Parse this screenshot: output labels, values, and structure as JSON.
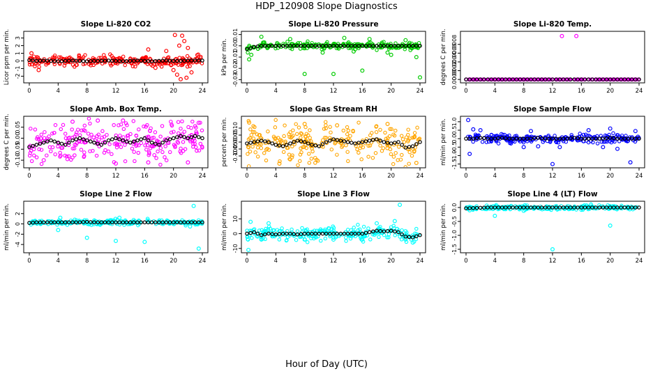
{
  "figure": {
    "title": "HDP_120908  Slope Diagnostics",
    "xlabel": "Hour of Day (UTC)"
  },
  "chart_data": [
    {
      "type": "scatter",
      "title": "Slope Li-820 CO2",
      "ylabel": "Licor ppm per min.",
      "color": "#ff0000",
      "xlim": [
        0,
        24
      ],
      "ylim": [
        -2.6,
        3.6
      ],
      "xticks": [
        0,
        4,
        8,
        12,
        16,
        20,
        24
      ],
      "yticks": [
        -2,
        -1,
        0,
        1,
        2,
        3
      ],
      "ytick_labels": [
        "-2",
        "-1",
        "0",
        "1",
        "2",
        "3"
      ],
      "hourly_mean": [
        0.1,
        0.0,
        0.05,
        0.0,
        -0.05,
        0.0,
        0.05,
        0.0,
        -0.05,
        0.0,
        0.0,
        0.05,
        0.0,
        -0.05,
        0.0,
        0.05,
        0.0,
        -0.05,
        0.0,
        0.05,
        0.0,
        0.0,
        0.05,
        0.05,
        0.05
      ],
      "scatter_spread": 0.35,
      "outliers": [
        [
          20.2,
          3.4
        ],
        [
          21.2,
          3.3
        ],
        [
          20.5,
          -1.8
        ],
        [
          21.8,
          -2.2
        ],
        [
          20.8,
          2.0
        ],
        [
          22.0,
          1.7
        ],
        [
          1.3,
          -1.2
        ],
        [
          19.0,
          1.3
        ],
        [
          16.5,
          1.5
        ],
        [
          0.3,
          1.0
        ],
        [
          21.0,
          -2.4
        ],
        [
          22.5,
          -1.5
        ],
        [
          17.5,
          -0.9
        ],
        [
          21.5,
          2.6
        ],
        [
          20.0,
          -1.2
        ]
      ]
    },
    {
      "type": "scatter",
      "title": "Slope Li-820 Pressure",
      "ylabel": "kPa per min.",
      "color": "#00cc00",
      "xlim": [
        0,
        24
      ],
      "ylim": [
        -0.031,
        0.011
      ],
      "xticks": [
        0,
        4,
        8,
        12,
        16,
        20,
        24
      ],
      "yticks": [
        -0.03,
        -0.02,
        -0.01,
        0.0,
        0.01
      ],
      "ytick_labels": [
        "-0.03",
        "-0.02",
        "-0.01",
        "0.00",
        "0.01"
      ],
      "hourly_mean": [
        -0.003,
        -0.001,
        0.0,
        0.0,
        0.0,
        0.0,
        0.0,
        0.0,
        0.0,
        0.0,
        0.0,
        0.0,
        0.0,
        0.0,
        0.0,
        0.0,
        0.0,
        0.0,
        0.0,
        0.0,
        0.0,
        0.0,
        0.0,
        0.0,
        0.0
      ],
      "scatter_spread": 0.0015,
      "outliers": [
        [
          8.0,
          -0.025
        ],
        [
          12.0,
          -0.025
        ],
        [
          16.0,
          -0.022
        ],
        [
          24.0,
          -0.028
        ],
        [
          0.3,
          -0.012
        ],
        [
          0.6,
          -0.008
        ],
        [
          20.0,
          -0.008
        ],
        [
          6.0,
          0.006
        ],
        [
          13.5,
          0.007
        ],
        [
          17.0,
          0.006
        ],
        [
          19.5,
          -0.006
        ],
        [
          23.5,
          -0.01
        ],
        [
          2.0,
          0.008
        ],
        [
          10.5,
          -0.006
        ],
        [
          14.8,
          -0.005
        ],
        [
          22.0,
          0.005
        ]
      ]
    },
    {
      "type": "scatter",
      "title": "Slope Li-820 Temp.",
      "ylabel": "degrees C per min.",
      "color": "#ff00ff",
      "xlim": [
        0,
        24
      ],
      "ylim": [
        -3e-05,
        0.00105
      ],
      "xticks": [
        0,
        4,
        8,
        12,
        16,
        20,
        24
      ],
      "yticks": [
        0.0,
        0.0002,
        0.0004,
        0.0006,
        0.0008
      ],
      "ytick_labels": [
        "0.0000",
        "0.0002",
        "0.0004",
        "0.0006",
        "0.0008"
      ],
      "hourly_mean": [
        0,
        0,
        0,
        0,
        0,
        0,
        0,
        0,
        0,
        0,
        0,
        0,
        0,
        0,
        0,
        0,
        0,
        0,
        0,
        0,
        0,
        0,
        0,
        0,
        0
      ],
      "scatter_spread": 0.0,
      "outliers": [
        [
          13.3,
          0.00099
        ],
        [
          15.3,
          0.00099
        ]
      ]
    },
    {
      "type": "scatter",
      "title": "Slope Amb. Box Temp.",
      "ylabel": "degrees C per min.",
      "color": "#ff00ff",
      "xlim": [
        0,
        24
      ],
      "ylim": [
        -0.125,
        0.09
      ],
      "xticks": [
        0,
        4,
        8,
        12,
        16,
        20,
        24
      ],
      "yticks": [
        -0.1,
        -0.05,
        0.0,
        0.05
      ],
      "ytick_labels": [
        "-0.10",
        "-0.05",
        "0.00",
        "0.05"
      ],
      "hourly_mean": [
        -0.04,
        -0.03,
        -0.02,
        -0.01,
        -0.02,
        -0.03,
        -0.01,
        0.0,
        -0.01,
        -0.02,
        -0.03,
        -0.01,
        0.0,
        -0.01,
        -0.02,
        -0.01,
        0.0,
        -0.02,
        -0.03,
        -0.01,
        0.0,
        0.01,
        0.0,
        0.01,
        0.0
      ],
      "scatter_spread": 0.045,
      "outliers": [
        [
          9.5,
          0.08
        ],
        [
          13.0,
          0.08
        ],
        [
          12.0,
          -0.115
        ],
        [
          22.0,
          -0.11
        ],
        [
          2.0,
          -0.1
        ],
        [
          6.0,
          0.075
        ],
        [
          16.5,
          -0.11
        ],
        [
          23.5,
          0.07
        ]
      ]
    },
    {
      "type": "scatter",
      "title": "Slope Gas Stream RH",
      "ylabel": "percent per min.",
      "color": "#ffa500",
      "xlim": [
        0,
        24
      ],
      "ylim": [
        -0.17,
        0.17
      ],
      "xticks": [
        0,
        4,
        8,
        12,
        16,
        20,
        24
      ],
      "yticks": [
        -0.1,
        -0.05,
        0.0,
        0.05,
        0.1
      ],
      "ytick_labels": [
        "-0.10",
        "-0.05",
        "0.00",
        "0.05",
        "0.10"
      ],
      "hourly_mean": [
        -0.01,
        0.0,
        0.01,
        0.0,
        -0.02,
        -0.03,
        -0.01,
        0.01,
        0.0,
        -0.02,
        -0.03,
        0.0,
        0.02,
        0.01,
        0.0,
        -0.01,
        0.0,
        0.01,
        0.02,
        0.0,
        -0.01,
        0.0,
        -0.04,
        -0.03,
        0.0
      ],
      "scatter_spread": 0.07,
      "outliers": [
        [
          4.5,
          -0.155
        ],
        [
          0.3,
          0.14
        ],
        [
          12.5,
          0.12
        ],
        [
          19.5,
          0.13
        ],
        [
          23.5,
          -0.15
        ],
        [
          8.0,
          0.13
        ]
      ]
    },
    {
      "type": "scatter",
      "title": "Slope Sample Flow",
      "ylabel": "ml/min per min.",
      "color": "#0000ff",
      "xlim": [
        0,
        24
      ],
      "ylim": [
        -1.6,
        1.2
      ],
      "xticks": [
        0,
        4,
        8,
        12,
        16,
        20,
        24
      ],
      "yticks": [
        -1.5,
        -1.0,
        -0.5,
        0.0,
        0.5,
        1.0
      ],
      "ytick_labels": [
        "-1.5",
        "-1.0",
        "-0.5",
        "0.0",
        "0.5",
        "1.0"
      ],
      "hourly_mean": [
        0.0,
        0.0,
        0.05,
        0.0,
        0.0,
        0.05,
        0.0,
        0.0,
        0.0,
        0.0,
        0.05,
        0.0,
        0.0,
        0.0,
        0.0,
        0.05,
        0.0,
        0.0,
        0.0,
        0.0,
        0.05,
        0.0,
        0.0,
        0.0,
        0.0
      ],
      "scatter_spread": 0.12,
      "outliers": [
        [
          0.3,
          1.1
        ],
        [
          12.0,
          -1.5
        ],
        [
          22.8,
          -1.4
        ],
        [
          0.5,
          -0.9
        ],
        [
          8.0,
          -0.5
        ],
        [
          21.0,
          -0.6
        ],
        [
          2.0,
          0.5
        ],
        [
          13.0,
          -0.5
        ],
        [
          20.0,
          0.6
        ],
        [
          1.0,
          0.55
        ],
        [
          9.0,
          0.45
        ],
        [
          17.0,
          0.5
        ],
        [
          23.5,
          0.45
        ],
        [
          10.0,
          -0.45
        ],
        [
          19.0,
          -0.5
        ]
      ]
    },
    {
      "type": "scatter",
      "title": "Slope Line 2 Flow",
      "ylabel": "ml/min per min.",
      "color": "#00ffff",
      "xlim": [
        0,
        24
      ],
      "ylim": [
        -5.2,
        4.0
      ],
      "xticks": [
        0,
        4,
        8,
        12,
        16,
        20,
        24
      ],
      "yticks": [
        -4,
        -2,
        0,
        2
      ],
      "ytick_labels": [
        "-4",
        "-2",
        "0",
        "2"
      ],
      "hourly_mean": [
        0.2,
        0.3,
        0.3,
        0.3,
        0.3,
        0.3,
        0.3,
        0.3,
        0.4,
        0.3,
        0.3,
        0.3,
        0.3,
        0.3,
        0.3,
        0.3,
        0.3,
        0.3,
        0.3,
        0.3,
        0.3,
        0.3,
        0.3,
        0.3,
        0.3
      ],
      "scatter_spread": 0.25,
      "outliers": [
        [
          22.8,
          3.5
        ],
        [
          23.5,
          -4.8
        ],
        [
          4.0,
          -1.2
        ],
        [
          8.0,
          -2.7
        ],
        [
          12.0,
          -3.3
        ],
        [
          16.0,
          -3.5
        ],
        [
          22.3,
          -0.5
        ],
        [
          4.3,
          1.2
        ],
        [
          12.5,
          1.2
        ]
      ]
    },
    {
      "type": "scatter",
      "title": "Slope Line 3 Flow",
      "ylabel": "ml/min per min.",
      "color": "#00ffff",
      "xlim": [
        0,
        24
      ],
      "ylim": [
        -11.5,
        20.5
      ],
      "xticks": [
        0,
        4,
        8,
        12,
        16,
        20,
        24
      ],
      "yticks": [
        -10,
        0,
        10
      ],
      "ytick_labels": [
        "-10",
        "0",
        "10"
      ],
      "hourly_mean": [
        0.0,
        1.0,
        -1.0,
        0.0,
        -0.5,
        0.0,
        0.0,
        -0.5,
        0.0,
        0.0,
        0.0,
        0.0,
        0.0,
        0.0,
        0.0,
        0.0,
        0.0,
        1.0,
        2.0,
        1.5,
        2.0,
        1.0,
        -2.0,
        -2.5,
        -1.0
      ],
      "scatter_spread": 2.2,
      "outliers": [
        [
          0.2,
          -11.0
        ],
        [
          21.2,
          19.5
        ],
        [
          0.5,
          8.0
        ],
        [
          3.0,
          7.0
        ],
        [
          18.0,
          7.0
        ],
        [
          20.5,
          8.5
        ],
        [
          22.0,
          -4.0
        ],
        [
          23.0,
          -6.0
        ],
        [
          2.0,
          -4.0
        ],
        [
          12.0,
          -4.0
        ],
        [
          16.0,
          -4.0
        ],
        [
          8.0,
          -4.0
        ]
      ]
    },
    {
      "type": "scatter",
      "title": "Slope Line 4 (LT) Flow",
      "ylabel": "ml/min per min.",
      "color": "#00ffff",
      "xlim": [
        0,
        24
      ],
      "ylim": [
        -1.55,
        0.15
      ],
      "xticks": [
        0,
        4,
        8,
        12,
        16,
        20,
        24
      ],
      "yticks": [
        -1.5,
        -1.0,
        -0.5,
        0.0
      ],
      "ytick_labels": [
        "-1.5",
        "-1.0",
        "-0.5",
        "0.0"
      ],
      "hourly_mean": [
        -0.03,
        -0.02,
        -0.01,
        0.0,
        0.0,
        0.0,
        0.0,
        0.0,
        0.0,
        0.0,
        0.0,
        0.0,
        0.0,
        0.0,
        0.0,
        0.0,
        0.0,
        0.0,
        0.0,
        0.0,
        0.0,
        0.0,
        0.0,
        0.0,
        0.0
      ],
      "scatter_spread": 0.04,
      "outliers": [
        [
          12.0,
          -1.5
        ],
        [
          20.0,
          -0.65
        ],
        [
          4.0,
          -0.3
        ],
        [
          8.0,
          -0.12
        ],
        [
          16.0,
          -0.08
        ],
        [
          0.5,
          -0.1
        ]
      ]
    }
  ]
}
